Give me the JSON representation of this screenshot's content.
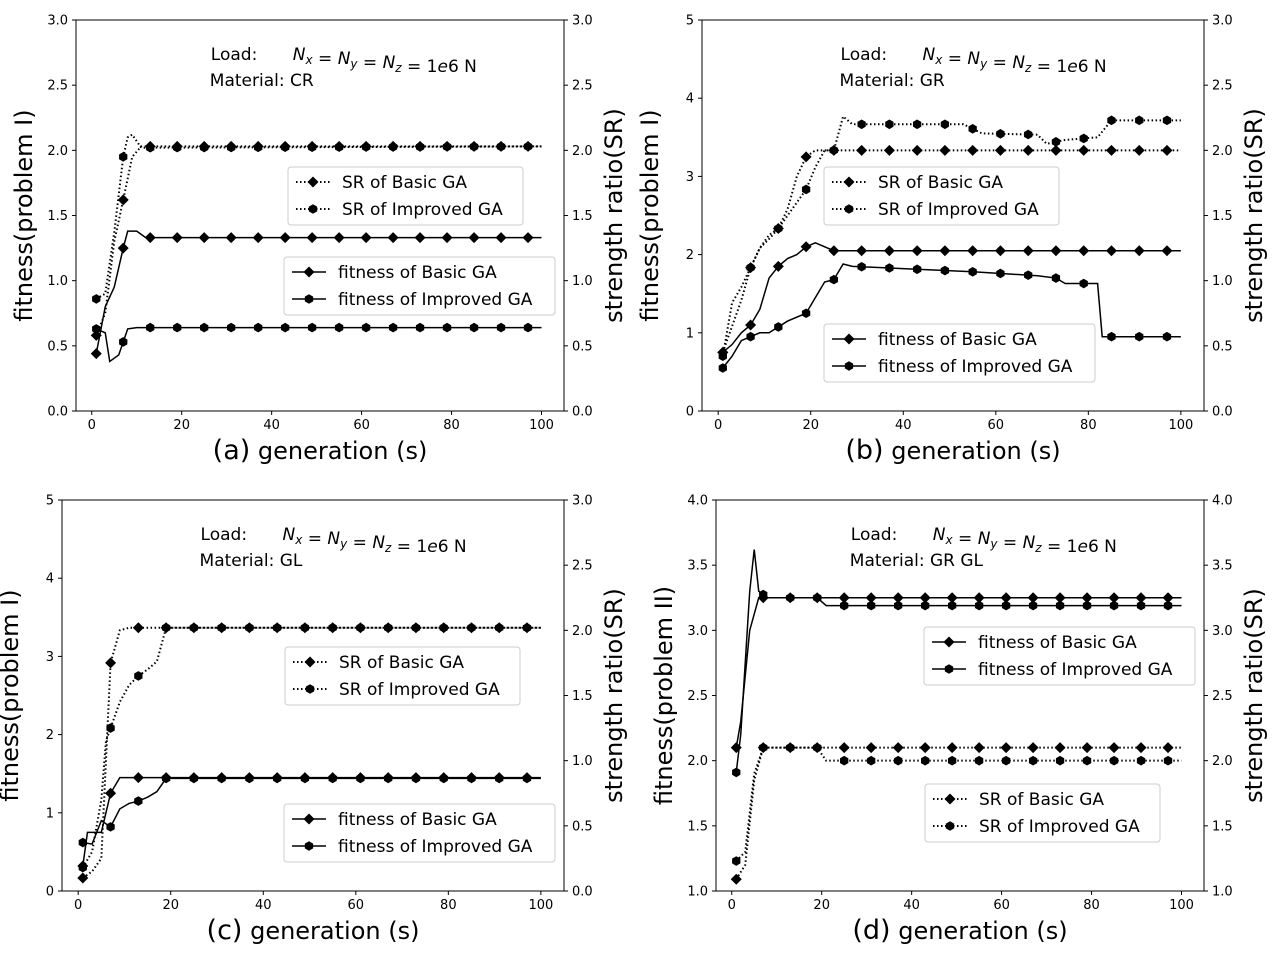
{
  "chart_data": [
    {
      "type": "line",
      "panel_label": "(a)",
      "xlabel": "generation (s)",
      "ylabel": "fitness(problem I)",
      "y2label": "strength ratio(SR)",
      "annotation": {
        "load_label": "Load:",
        "load_formula": "N_x = N_y = N_z = 1e6 N",
        "material_label": "Material:",
        "material_value": "CR"
      },
      "xlim": [
        -3.5,
        105
      ],
      "ylim": [
        0,
        3
      ],
      "y2lim": [
        0,
        3
      ],
      "xticks": [
        0,
        20,
        40,
        60,
        80,
        100
      ],
      "yticks": [
        "0.0",
        "0.5",
        "1.0",
        "1.5",
        "2.0",
        "2.5",
        "3.0"
      ],
      "y2ticks": [
        "0.0",
        "0.5",
        "1.0",
        "1.5",
        "2.0",
        "2.5",
        "3.0"
      ],
      "legends": [
        {
          "placement": "upper-right",
          "entries": [
            "SR of Basic GA",
            "SR of Improved GA"
          ]
        },
        {
          "placement": "center-right",
          "entries": [
            "fitness of Basic GA",
            "fitness of Improved GA"
          ]
        }
      ],
      "series": [
        {
          "name": "fitness of Basic GA",
          "axis": "y",
          "line": "solid",
          "marker": "diamond",
          "x": [
            1,
            3,
            5,
            7,
            8,
            10,
            12,
            100
          ],
          "y": [
            0.44,
            0.8,
            0.95,
            1.25,
            1.38,
            1.38,
            1.33,
            1.33
          ]
        },
        {
          "name": "fitness of Improved GA",
          "axis": "y",
          "line": "solid",
          "marker": "hexagon",
          "x": [
            1,
            3,
            4,
            6,
            8,
            10,
            100
          ],
          "y": [
            0.63,
            0.6,
            0.38,
            0.43,
            0.63,
            0.64,
            0.64
          ]
        },
        {
          "name": "SR of Basic GA",
          "axis": "y2",
          "line": "dotted",
          "marker": "diamond",
          "x": [
            1,
            3,
            5,
            7,
            9,
            11,
            100
          ],
          "y": [
            0.58,
            0.75,
            1.3,
            1.62,
            1.95,
            2.03,
            2.03
          ]
        },
        {
          "name": "SR of Improved GA",
          "axis": "y2",
          "line": "dotted",
          "marker": "hexagon",
          "x": [
            1,
            3,
            5,
            7,
            8,
            9,
            11,
            100
          ],
          "y": [
            0.86,
            0.9,
            1.37,
            1.95,
            2.1,
            2.12,
            2.02,
            2.03
          ]
        }
      ]
    },
    {
      "type": "line",
      "panel_label": "(b)",
      "xlabel": "generation (s)",
      "ylabel": "fitness(problem I)",
      "y2label": "strength ratio(SR)",
      "annotation": {
        "load_label": "Load:",
        "load_formula": "N_x = N_y = N_z = 1e6 N",
        "material_label": "Material:",
        "material_value": "GR"
      },
      "xlim": [
        -3.5,
        105
      ],
      "ylim": [
        0,
        5
      ],
      "y2lim": [
        0,
        3
      ],
      "xticks": [
        0,
        20,
        40,
        60,
        80,
        100
      ],
      "yticks": [
        "0",
        "1",
        "2",
        "3",
        "4",
        "5"
      ],
      "y2ticks": [
        "0.0",
        "0.5",
        "1.0",
        "1.5",
        "2.0",
        "2.5",
        "3.0"
      ],
      "legends": [
        {
          "placement": "upper-center",
          "entries": [
            "SR of Basic GA",
            "SR of Improved GA"
          ]
        },
        {
          "placement": "lower-center",
          "entries": [
            "fitness of Basic GA",
            "fitness of Improved GA"
          ]
        }
      ],
      "series": [
        {
          "name": "fitness of Basic GA",
          "axis": "y",
          "line": "solid",
          "marker": "diamond",
          "x": [
            1,
            3,
            5,
            7,
            9,
            11,
            13,
            15,
            17,
            19,
            21,
            25,
            100
          ],
          "y": [
            0.75,
            0.85,
            1.0,
            1.1,
            1.3,
            1.7,
            1.85,
            1.95,
            2.0,
            2.1,
            2.15,
            2.05,
            2.05
          ]
        },
        {
          "name": "fitness of Improved GA",
          "axis": "y",
          "line": "solid",
          "marker": "hexagon",
          "x": [
            1,
            3,
            5,
            7,
            9,
            11,
            15,
            19,
            21,
            23,
            25,
            27,
            29,
            55,
            69,
            73,
            75,
            82,
            83,
            100
          ],
          "y": [
            0.55,
            0.7,
            0.9,
            0.95,
            1.0,
            1.0,
            1.15,
            1.25,
            1.45,
            1.65,
            1.68,
            1.88,
            1.85,
            1.78,
            1.73,
            1.7,
            1.63,
            1.63,
            0.95,
            0.95
          ]
        },
        {
          "name": "SR of Basic GA",
          "axis": "y2",
          "line": "dotted",
          "marker": "diamond",
          "x": [
            1,
            3,
            5,
            7,
            9,
            11,
            13,
            15,
            17,
            19,
            21,
            23,
            25,
            100
          ],
          "y": [
            0.45,
            0.65,
            0.85,
            1.1,
            1.25,
            1.35,
            1.4,
            1.55,
            1.8,
            1.95,
            2.0,
            2.0,
            2.0,
            2.0
          ]
        },
        {
          "name": "SR of Improved GA",
          "axis": "y2",
          "line": "dotted",
          "marker": "hexagon",
          "x": [
            1,
            3,
            5,
            7,
            9,
            11,
            13,
            15,
            17,
            19,
            21,
            23,
            25,
            27,
            29,
            53,
            57,
            69,
            71,
            75,
            82,
            85,
            100
          ],
          "y": [
            0.42,
            0.83,
            0.95,
            1.1,
            1.25,
            1.32,
            1.4,
            1.5,
            1.6,
            1.7,
            1.87,
            2.0,
            2.0,
            2.26,
            2.2,
            2.2,
            2.13,
            2.12,
            2.05,
            2.08,
            2.1,
            2.23,
            2.23
          ]
        }
      ]
    },
    {
      "type": "line",
      "panel_label": "(c)",
      "xlabel": "generation (s)",
      "ylabel": "fitness(problem I)",
      "y2label": "strength ratio(SR)",
      "annotation": {
        "load_label": "Load:",
        "load_formula": "N_x = N_y = N_z = 1e6 N",
        "material_label": "Material:",
        "material_value": "GL"
      },
      "xlim": [
        -3.5,
        105
      ],
      "ylim": [
        0,
        5
      ],
      "y2lim": [
        0,
        3
      ],
      "xticks": [
        0,
        20,
        40,
        60,
        80,
        100
      ],
      "yticks": [
        "0",
        "1",
        "2",
        "3",
        "4",
        "5"
      ],
      "y2ticks": [
        "0.0",
        "0.5",
        "1.0",
        "1.5",
        "2.0",
        "2.5",
        "3.0"
      ],
      "legends": [
        {
          "placement": "upper-right",
          "entries": [
            "SR of Basic GA",
            "SR of Improved GA"
          ]
        },
        {
          "placement": "lower-right",
          "entries": [
            "fitness of Basic GA",
            "fitness of Improved GA"
          ]
        }
      ],
      "series": [
        {
          "name": "fitness of Basic GA",
          "axis": "y",
          "line": "solid",
          "marker": "diamond",
          "x": [
            1,
            2,
            5,
            7,
            9,
            11,
            100
          ],
          "y": [
            0.32,
            0.75,
            0.75,
            1.25,
            1.45,
            1.45,
            1.45
          ]
        },
        {
          "name": "fitness of Improved GA",
          "axis": "y",
          "line": "solid",
          "marker": "hexagon",
          "x": [
            1,
            3,
            5,
            7,
            9,
            11,
            13,
            15,
            17,
            19,
            100
          ],
          "y": [
            0.62,
            0.6,
            0.9,
            0.82,
            1.05,
            1.12,
            1.15,
            1.2,
            1.27,
            1.44,
            1.44
          ]
        },
        {
          "name": "SR of Basic GA",
          "axis": "y2",
          "line": "dotted",
          "marker": "diamond",
          "x": [
            1,
            3,
            5,
            7,
            9,
            11,
            100
          ],
          "y": [
            0.1,
            0.15,
            0.25,
            1.75,
            2.0,
            2.02,
            2.02
          ]
        },
        {
          "name": "SR of Improved GA",
          "axis": "y2",
          "line": "dotted",
          "marker": "hexagon",
          "x": [
            1,
            3,
            5,
            6,
            8,
            9,
            11,
            13,
            15,
            17,
            19,
            100
          ],
          "y": [
            0.18,
            0.3,
            0.7,
            1.15,
            1.35,
            1.45,
            1.58,
            1.65,
            1.7,
            1.76,
            2.02,
            2.02
          ]
        }
      ]
    },
    {
      "type": "line",
      "panel_label": "(d)",
      "xlabel": "generation (s)",
      "ylabel": "fitness(problem II)",
      "y2label": "strength ratio(SR)",
      "annotation": {
        "load_label": "Load:",
        "load_formula": "N_x = N_y = N_z = 1e6 N",
        "material_label": "Material:",
        "material_value": "GR GL"
      },
      "xlim": [
        -3.5,
        105
      ],
      "ylim": [
        1,
        4
      ],
      "y2lim": [
        1,
        4
      ],
      "xticks": [
        0,
        20,
        40,
        60,
        80,
        100
      ],
      "yticks": [
        "1.0",
        "1.5",
        "2.0",
        "2.5",
        "3.0",
        "3.5",
        "4.0"
      ],
      "y2ticks": [
        "1.0",
        "1.5",
        "2.0",
        "2.5",
        "3.0",
        "3.5",
        "4.0"
      ],
      "legends": [
        {
          "placement": "upper-right",
          "entries": [
            "fitness of Basic GA",
            "fitness of Improved GA"
          ]
        },
        {
          "placement": "lower-right",
          "entries": [
            "SR of Basic GA",
            "SR of Improved GA"
          ]
        }
      ],
      "series": [
        {
          "name": "fitness of Basic GA",
          "axis": "y",
          "line": "solid",
          "marker": "diamond",
          "x": [
            1,
            2,
            4,
            6,
            8,
            100
          ],
          "y": [
            2.1,
            2.3,
            3.0,
            3.25,
            3.25,
            3.25
          ]
        },
        {
          "name": "fitness of Improved GA",
          "axis": "y",
          "line": "solid",
          "marker": "hexagon",
          "x": [
            1,
            2,
            4,
            5,
            6,
            8,
            19,
            21,
            100
          ],
          "y": [
            1.91,
            2.2,
            3.3,
            3.62,
            3.3,
            3.25,
            3.25,
            3.19,
            3.19
          ]
        },
        {
          "name": "SR of Basic GA",
          "axis": "y2",
          "line": "dotted",
          "marker": "diamond",
          "x": [
            1,
            3,
            5,
            7,
            100
          ],
          "y": [
            1.09,
            1.2,
            1.85,
            2.1,
            2.1
          ]
        },
        {
          "name": "SR of Improved GA",
          "axis": "y2",
          "line": "dotted",
          "marker": "hexagon",
          "x": [
            1,
            3,
            5,
            7,
            19,
            21,
            100
          ],
          "y": [
            1.23,
            1.3,
            1.9,
            2.1,
            2.1,
            2.0,
            2.0
          ]
        }
      ]
    }
  ]
}
